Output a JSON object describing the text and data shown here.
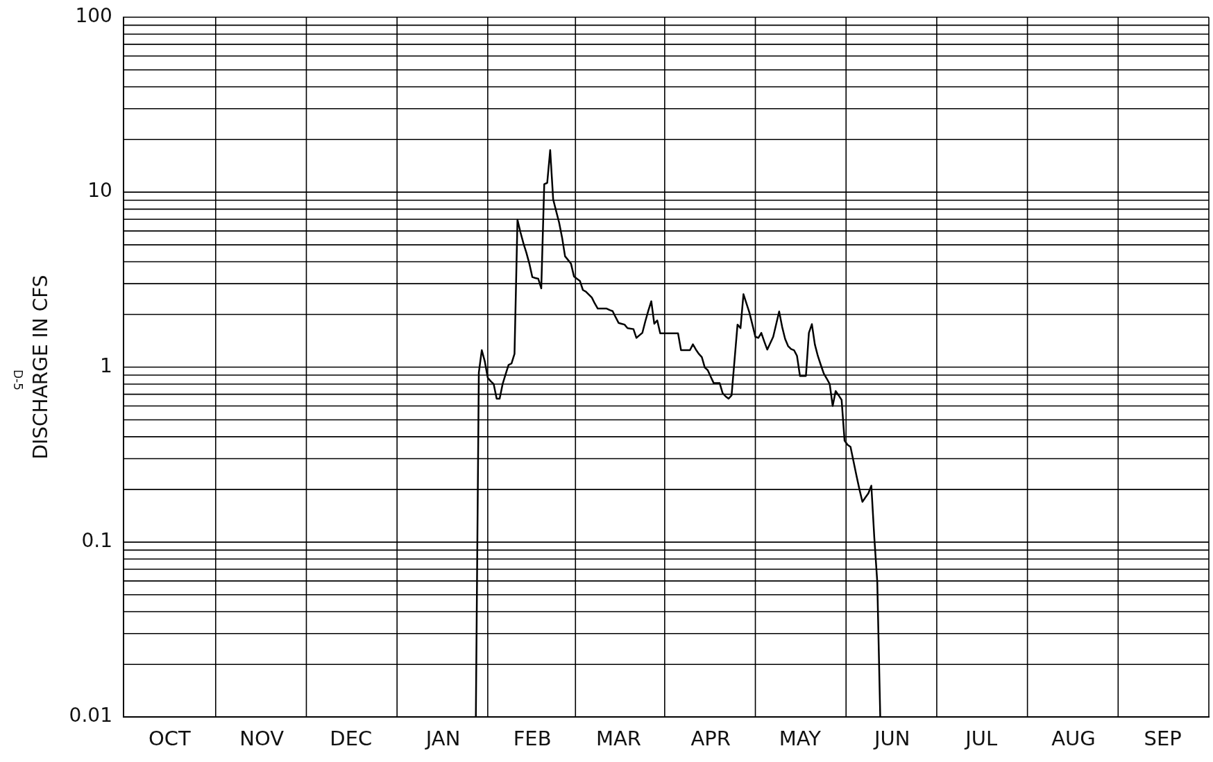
{
  "chart_data": {
    "type": "line",
    "ylabel": "DISCHARGE IN CFS",
    "annotations": [
      "D-5"
    ],
    "log": "y",
    "grid": true,
    "legend": false,
    "marker": "none",
    "line_style": "solid",
    "categories": [
      null,
      null,
      null,
      null,
      null,
      null,
      null,
      null,
      null,
      null,
      null,
      null,
      null,
      null,
      null,
      "OCT",
      null,
      null,
      null,
      null,
      null,
      null,
      null,
      null,
      null,
      null,
      null,
      null,
      null,
      null,
      null,
      null,
      null,
      null,
      null,
      null,
      null,
      null,
      null,
      null,
      null,
      null,
      null,
      null,
      null,
      null,
      "NOV",
      null,
      null,
      null,
      null,
      null,
      null,
      null,
      null,
      null,
      null,
      null,
      null,
      null,
      null,
      null,
      null,
      null,
      null,
      null,
      null,
      null,
      null,
      null,
      null,
      null,
      null,
      null,
      null,
      null,
      "DEC",
      null,
      null,
      null,
      null,
      null,
      null,
      null,
      null,
      null,
      null,
      null,
      null,
      null,
      null,
      null,
      null,
      null,
      null,
      null,
      null,
      null,
      null,
      null,
      null,
      null,
      null,
      null,
      null,
      null,
      null,
      "JAN",
      null,
      null,
      null,
      null,
      null,
      null,
      null,
      null,
      null,
      null,
      null,
      null,
      null,
      null,
      null,
      null,
      null,
      null,
      null,
      null,
      null,
      null,
      null,
      null,
      null,
      null,
      null,
      null,
      null,
      "FEB",
      null,
      null,
      null,
      null,
      null,
      null,
      null,
      null,
      null,
      null,
      null,
      null,
      null,
      null,
      null,
      null,
      null,
      null,
      null,
      null,
      null,
      null,
      null,
      null,
      null,
      null,
      null,
      null,
      "MAR",
      null,
      null,
      null,
      null,
      null,
      null,
      null,
      null,
      null,
      null,
      null,
      null,
      null,
      null,
      null,
      null,
      null,
      null,
      null,
      null,
      null,
      null,
      null,
      null,
      null,
      null,
      null,
      null,
      null,
      null,
      "APR",
      null,
      null,
      null,
      null,
      null,
      null,
      null,
      null,
      null,
      null,
      null,
      null,
      null,
      null,
      null,
      null,
      null,
      null,
      null,
      null,
      null,
      null,
      null,
      null,
      null,
      null,
      null,
      null,
      null,
      "MAY",
      null,
      null,
      null,
      null,
      null,
      null,
      null,
      null,
      null,
      null,
      null,
      null,
      null,
      null,
      null,
      null,
      null,
      null,
      null,
      null,
      null,
      null,
      null,
      null,
      null,
      null,
      null,
      null,
      null,
      null,
      "JUN",
      null,
      null,
      null,
      null,
      null,
      null,
      null,
      null,
      null,
      null,
      null,
      null,
      null,
      null,
      null,
      null,
      null,
      null,
      null,
      null,
      null,
      null,
      null,
      null,
      null,
      null,
      null,
      null,
      null,
      "JUL",
      null,
      null,
      null,
      null,
      null,
      null,
      null,
      null,
      null,
      null,
      null,
      null,
      null,
      null,
      null,
      null,
      null,
      null,
      null,
      null,
      null,
      null,
      null,
      null,
      null,
      null,
      null,
      null,
      null,
      null,
      "AUG",
      null,
      null,
      null,
      null,
      null,
      null,
      null,
      null,
      null,
      null,
      null,
      null,
      null,
      null,
      null,
      null,
      null,
      null,
      null,
      null,
      null,
      null,
      null,
      null,
      null,
      null,
      null,
      null,
      null,
      "SEP",
      null,
      null,
      null,
      null,
      null,
      null,
      null,
      null,
      null,
      null,
      null,
      null,
      null,
      null,
      null
    ],
    "ylim": [
      0.01,
      100
    ],
    "yticks": [
      0.01,
      0.1,
      1,
      10,
      100
    ],
    "series": [
      {
        "color": "#000000",
        "values": [
          0.01,
          0.01,
          0.01,
          0.01,
          0.01,
          0.01,
          0.01,
          0.01,
          0.01,
          0.01,
          0.01,
          0.01,
          0.01,
          0.01,
          0.01,
          0.01,
          0.01,
          0.01,
          0.01,
          0.01,
          0.01,
          0.01,
          0.01,
          0.01,
          0.01,
          0.01,
          0.01,
          0.01,
          0.01,
          0.01,
          0.01,
          0.01,
          0.01,
          0.01,
          0.01,
          0.01,
          0.01,
          0.01,
          0.01,
          0.01,
          0.01,
          0.01,
          0.01,
          0.01,
          0.01,
          0.01,
          0.01,
          0.01,
          0.01,
          0.01,
          0.01,
          0.01,
          0.01,
          0.01,
          0.01,
          0.01,
          0.01,
          0.01,
          0.01,
          0.01,
          0.01,
          0.01,
          0.01,
          0.01,
          0.01,
          0.01,
          0.01,
          0.01,
          0.01,
          0.01,
          0.01,
          0.01,
          0.01,
          0.01,
          0.01,
          0.01,
          0.01,
          0.01,
          0.01,
          0.01,
          0.01,
          0.01,
          0.01,
          0.01,
          0.01,
          0.01,
          0.01,
          0.01,
          0.01,
          0.01,
          0.01,
          0.01,
          0.01,
          0.01,
          0.01,
          0.01,
          0.01,
          0.01,
          0.01,
          0.01,
          0.01,
          0.01,
          0.01,
          0.01,
          0.01,
          0.01,
          0.01,
          0.01,
          0.01,
          0.01,
          0.01,
          0.01,
          0.01,
          0.01,
          0.01,
          0.01,
          0.01,
          0.01,
          0.01,
          0.93,
          1.25,
          1.08,
          0.87,
          0.83,
          0.8,
          0.66,
          0.66,
          0.8,
          0.91,
          1.03,
          1.05,
          1.19,
          6.95,
          5.9,
          5.1,
          4.5,
          3.9,
          3.27,
          3.23,
          3.2,
          2.82,
          11.1,
          11.3,
          17.4,
          9.1,
          7.8,
          6.7,
          5.5,
          4.3,
          4.1,
          3.9,
          3.3,
          3.2,
          3.11,
          2.76,
          2.7,
          2.6,
          2.5,
          2.31,
          2.16,
          2.16,
          2.16,
          2.16,
          2.12,
          2.09,
          1.93,
          1.79,
          1.77,
          1.75,
          1.67,
          1.66,
          1.65,
          1.47,
          1.52,
          1.57,
          1.83,
          2.1,
          2.38,
          1.77,
          1.85,
          1.56,
          1.56,
          1.56,
          1.56,
          1.56,
          1.56,
          1.56,
          1.25,
          1.25,
          1.25,
          1.25,
          1.35,
          1.26,
          1.19,
          1.14,
          0.995,
          0.96,
          0.88,
          0.81,
          0.81,
          0.81,
          0.71,
          0.68,
          0.66,
          0.69,
          1.1,
          1.75,
          1.67,
          2.61,
          2.31,
          2.05,
          1.75,
          1.49,
          1.47,
          1.57,
          1.4,
          1.26,
          1.37,
          1.49,
          1.76,
          2.08,
          1.7,
          1.45,
          1.32,
          1.27,
          1.25,
          1.16,
          0.89,
          0.89,
          0.89,
          1.57,
          1.76,
          1.35,
          1.16,
          1.03,
          0.92,
          0.86,
          0.8,
          0.6,
          0.73,
          0.69,
          0.65,
          0.38,
          0.36,
          0.35,
          0.29,
          0.24,
          0.2,
          0.17,
          0.18,
          0.19,
          0.21,
          0.106,
          0.059,
          0.01,
          null,
          null,
          null,
          null,
          null,
          null,
          null,
          null,
          null,
          null,
          null,
          null,
          null,
          null,
          null,
          null,
          null,
          null,
          null,
          null,
          null,
          null,
          null,
          null,
          null,
          null,
          null,
          null,
          null,
          null,
          null,
          null,
          null,
          null,
          null,
          null,
          null,
          null,
          null,
          null,
          null,
          null,
          null,
          null,
          null,
          null,
          null,
          null,
          null,
          null,
          null,
          null,
          null,
          null,
          null,
          null,
          null,
          null,
          null,
          null,
          null,
          null,
          null,
          null,
          null,
          null,
          null,
          null,
          null,
          null,
          null,
          null,
          null,
          null,
          null,
          null,
          null,
          null,
          null,
          null,
          null,
          null,
          null,
          null,
          null,
          null,
          null,
          null,
          null,
          null,
          null,
          null,
          null,
          null,
          null,
          null,
          null,
          null,
          null,
          null,
          null,
          null,
          null,
          null,
          null,
          null,
          null,
          null,
          null,
          null
        ]
      }
    ]
  }
}
